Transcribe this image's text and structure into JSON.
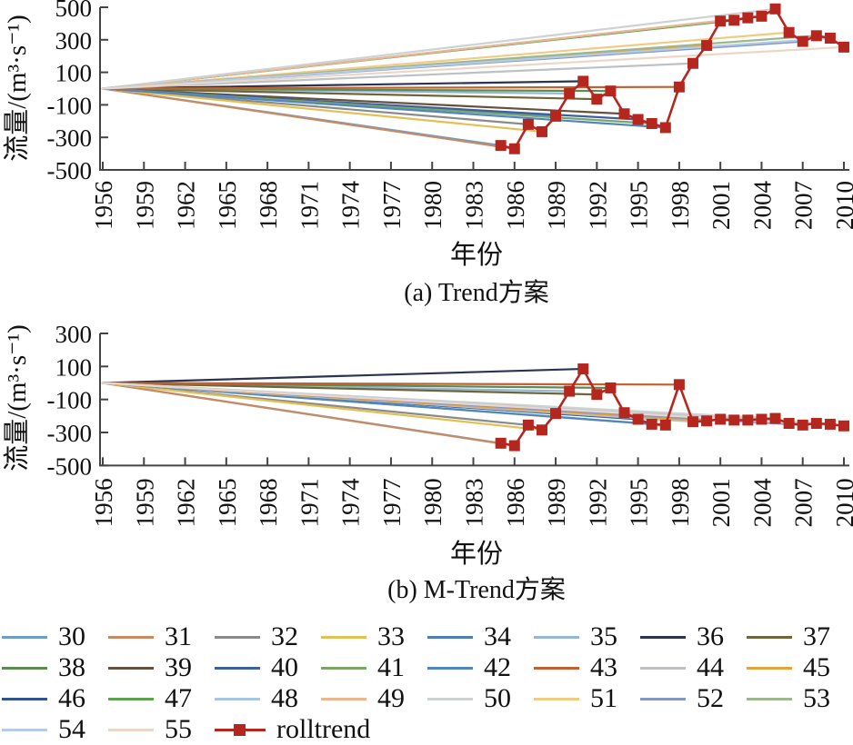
{
  "figure": {
    "ylabel": "流量/(m³·s⁻¹)",
    "xlabel": "年份"
  },
  "chart_data": [
    {
      "id": "a",
      "type": "line",
      "subtitle": "(a) Trend方案",
      "xlabel": "年份",
      "ylabel": "流量/(m³·s⁻¹)",
      "ylim": [
        -500,
        500
      ],
      "y_ticks": [
        500,
        300,
        100,
        -100,
        -300,
        -500
      ],
      "x_ticks": [
        1956,
        1959,
        1962,
        1965,
        1968,
        1971,
        1974,
        1977,
        1980,
        1983,
        1986,
        1989,
        1992,
        1995,
        1998,
        2001,
        2004,
        2007,
        2010
      ],
      "grid": false,
      "trend_origin": {
        "year": 1956,
        "value": 0
      },
      "trend_windows": [
        30,
        31,
        32,
        33,
        34,
        35,
        36,
        37,
        38,
        39,
        40,
        41,
        42,
        43,
        44,
        45,
        46,
        47,
        48,
        49,
        50,
        51,
        52,
        53,
        54,
        55
      ],
      "rolltrend": {
        "name": "rolltrend",
        "years": [
          1985,
          1986,
          1987,
          1988,
          1989,
          1990,
          1991,
          1992,
          1993,
          1994,
          1995,
          1996,
          1997,
          1998,
          1999,
          2000,
          2001,
          2002,
          2003,
          2004,
          2005,
          2006,
          2007,
          2008,
          2009,
          2010
        ],
        "values": [
          -350,
          -370,
          -220,
          -265,
          -170,
          -30,
          45,
          -65,
          -15,
          -155,
          -190,
          -215,
          -240,
          10,
          155,
          265,
          415,
          420,
          435,
          445,
          490,
          345,
          290,
          325,
          310,
          255
        ]
      }
    },
    {
      "id": "b",
      "type": "line",
      "subtitle": "(b) M-Trend方案",
      "xlabel": "年份",
      "ylabel": "流量/(m³·s⁻¹)",
      "ylim": [
        -500,
        300
      ],
      "y_ticks": [
        300,
        100,
        -100,
        -300,
        -500
      ],
      "x_ticks": [
        1956,
        1959,
        1962,
        1965,
        1968,
        1971,
        1974,
        1977,
        1980,
        1983,
        1986,
        1989,
        1992,
        1995,
        1998,
        2001,
        2004,
        2007,
        2010
      ],
      "grid": false,
      "trend_origin": {
        "year": 1956,
        "value": 0
      },
      "trend_windows": [
        30,
        31,
        32,
        33,
        34,
        35,
        36,
        37,
        38,
        39,
        40,
        41,
        42,
        43,
        44,
        45,
        46,
        47,
        48,
        49,
        50,
        51,
        52,
        53,
        54,
        55
      ],
      "rolltrend": {
        "name": "rolltrend",
        "years": [
          1985,
          1986,
          1987,
          1988,
          1989,
          1990,
          1991,
          1992,
          1993,
          1994,
          1995,
          1996,
          1997,
          1998,
          1999,
          2000,
          2001,
          2002,
          2003,
          2004,
          2005,
          2006,
          2007,
          2008,
          2009,
          2010
        ],
        "values": [
          -365,
          -380,
          -255,
          -285,
          -185,
          -50,
          85,
          -70,
          -30,
          -180,
          -220,
          -250,
          -255,
          -10,
          -235,
          -230,
          -220,
          -225,
          -225,
          -220,
          -215,
          -245,
          -255,
          -245,
          -250,
          -260
        ]
      }
    }
  ],
  "legend": {
    "rows": [
      [
        {
          "label": "30",
          "color": "#6d9ec9"
        },
        {
          "label": "31",
          "color": "#c98a62"
        },
        {
          "label": "32",
          "color": "#8a8a8a"
        },
        {
          "label": "33",
          "color": "#e2c053"
        },
        {
          "label": "34",
          "color": "#4a80b5"
        },
        {
          "label": "35",
          "color": "#96b6d8"
        },
        {
          "label": "36",
          "color": "#2a3350"
        },
        {
          "label": "37",
          "color": "#6f6538"
        }
      ],
      [
        {
          "label": "38",
          "color": "#5d8a50"
        },
        {
          "label": "39",
          "color": "#66513f"
        },
        {
          "label": "40",
          "color": "#3c5f9e"
        },
        {
          "label": "41",
          "color": "#7ba567"
        },
        {
          "label": "42",
          "color": "#4f86c0"
        },
        {
          "label": "43",
          "color": "#c3602f"
        },
        {
          "label": "44",
          "color": "#bdc0c4"
        },
        {
          "label": "45",
          "color": "#e6a23e"
        }
      ],
      [
        {
          "label": "46",
          "color": "#305492"
        },
        {
          "label": "47",
          "color": "#5ba34e"
        },
        {
          "label": "48",
          "color": "#a5c6e5"
        },
        {
          "label": "49",
          "color": "#ecb58d"
        },
        {
          "label": "50",
          "color": "#ced2d3"
        },
        {
          "label": "51",
          "color": "#efcb84"
        },
        {
          "label": "52",
          "color": "#8097c8"
        },
        {
          "label": "53",
          "color": "#9db78c"
        }
      ],
      [
        {
          "label": "54",
          "color": "#b6cbe6"
        },
        {
          "label": "55",
          "color": "#ecd6c8"
        },
        {
          "label": "rolltrend",
          "color": "#b5271e",
          "marker": "square"
        }
      ]
    ]
  },
  "colors": {
    "rolltrend": "#b5271e",
    "axis": "#444444",
    "text": "#111111"
  }
}
